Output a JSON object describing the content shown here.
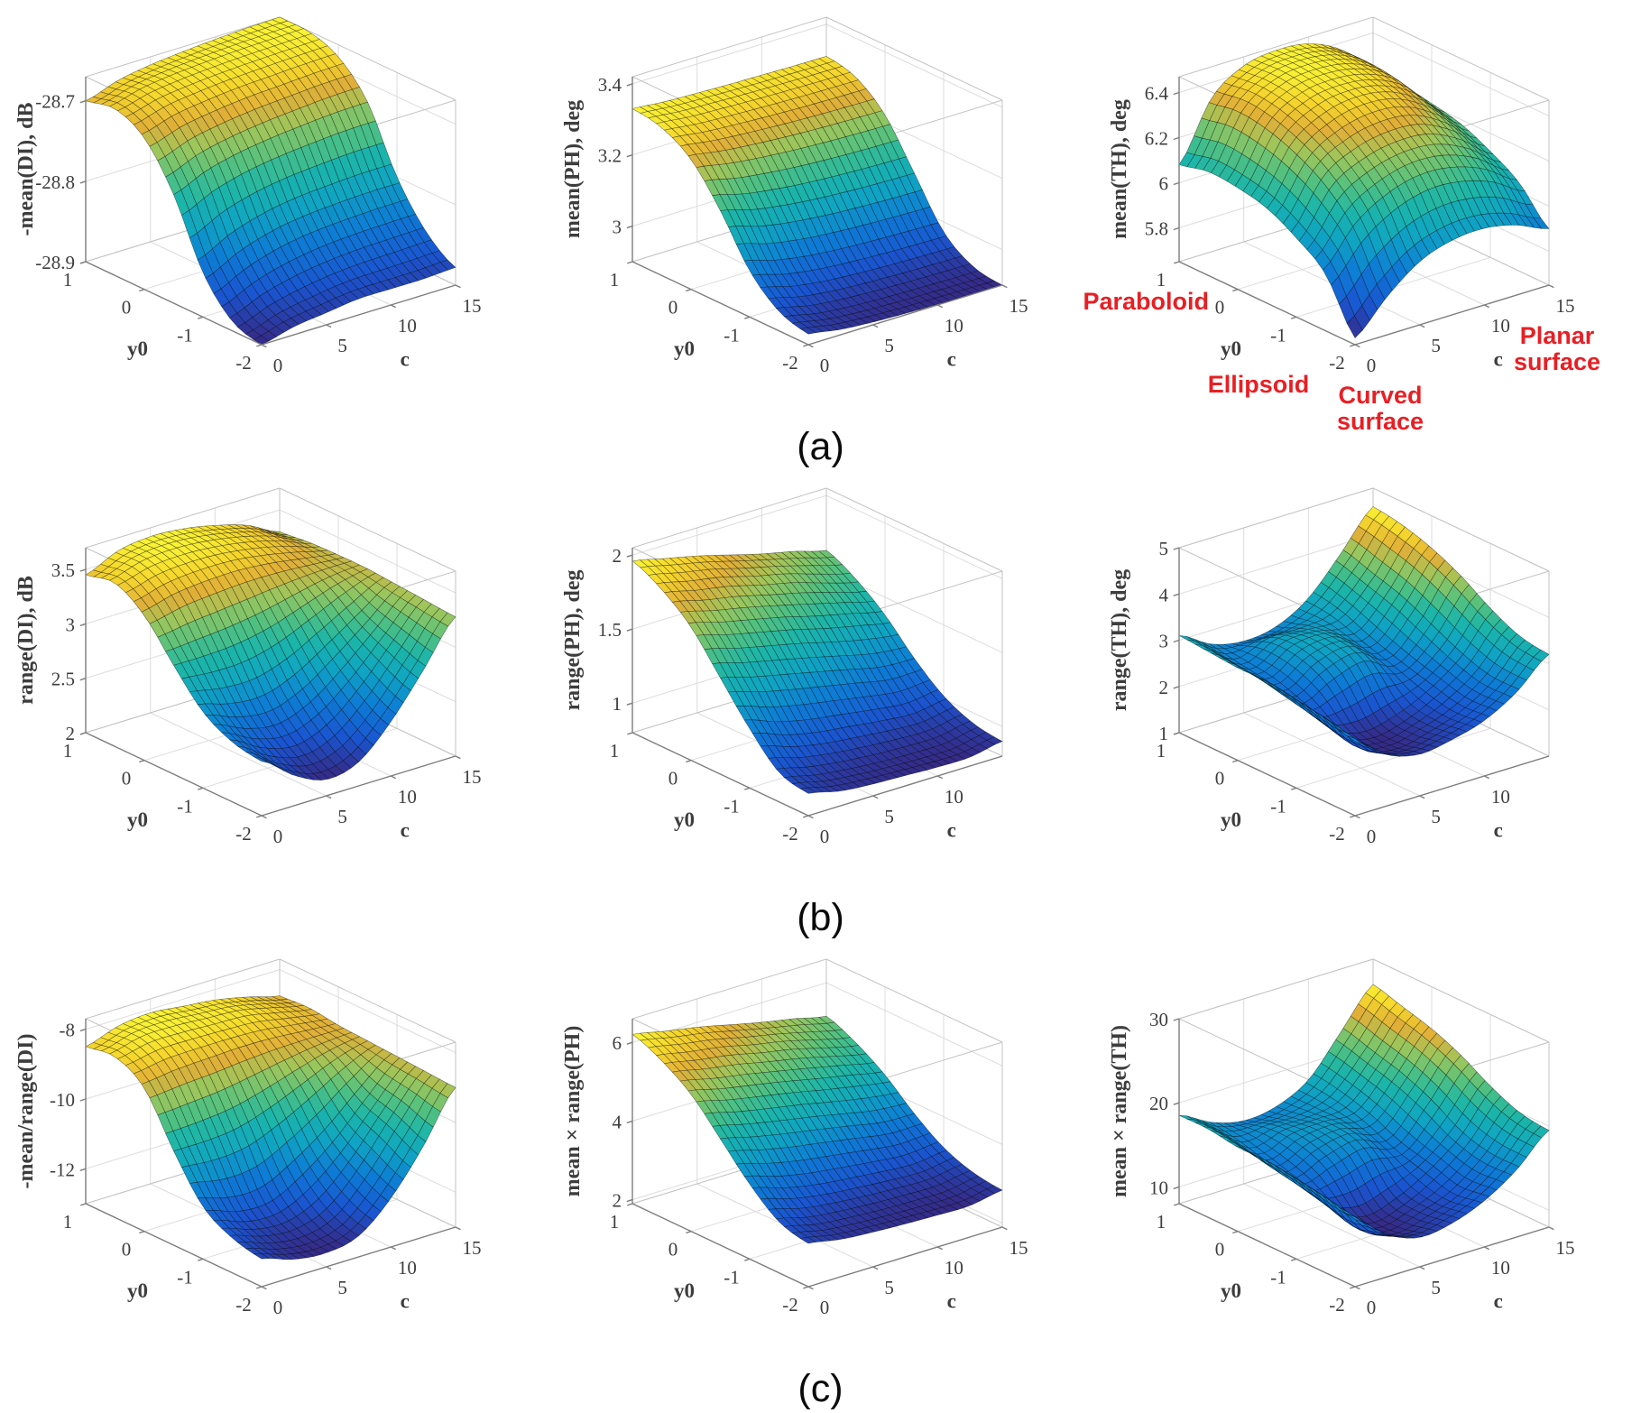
{
  "figure": {
    "captions": {
      "a": "(a)",
      "b": "(b)",
      "c": "(c)"
    },
    "annotations": {
      "paraboloid": "Paraboloid",
      "ellipsoid": "Ellipsoid",
      "curved_surface": "Curved\nsurface",
      "planar_surface": "Planar\nsurface"
    },
    "colors": {
      "annotation_red": "#e81f24",
      "axis_text": "#3d3d3d",
      "grid": "#dcdcdc",
      "box_edge": "#c3c3c3",
      "axis_line": "#7d7d7d",
      "mesh_edge": "#000000",
      "background": "#ffffff"
    },
    "colormap_parula": [
      {
        "t": 0.0,
        "c": "#352a87"
      },
      {
        "t": 0.14,
        "c": "#1a55d0"
      },
      {
        "t": 0.29,
        "c": "#0d7cd5"
      },
      {
        "t": 0.43,
        "c": "#0fa4c3"
      },
      {
        "t": 0.55,
        "c": "#1cb5a9"
      },
      {
        "t": 0.66,
        "c": "#53c17f"
      },
      {
        "t": 0.76,
        "c": "#9cc65c"
      },
      {
        "t": 0.85,
        "c": "#e0af38"
      },
      {
        "t": 0.93,
        "c": "#f5d62c"
      },
      {
        "t": 1.0,
        "c": "#f9f335"
      }
    ]
  },
  "chart_data": [
    {
      "id": "a1",
      "type": "surface",
      "zlabel": "-mean(DI), dB",
      "xlabel": "c",
      "ylabel": "y0",
      "xlim": [
        0,
        15
      ],
      "ylim": [
        -2,
        1
      ],
      "zlim": [
        -28.9,
        -28.67
      ],
      "xticks": [
        0,
        5,
        10,
        15
      ],
      "yticks": [
        -2,
        -1,
        0,
        1
      ],
      "zticks": [
        -28.9,
        -28.8,
        -28.7
      ],
      "grid_c": [
        0,
        2.5,
        5,
        7.5,
        10,
        12.5,
        15
      ],
      "grid_y0": [
        -2,
        -1.5,
        -1,
        -0.5,
        0,
        0.5,
        1
      ],
      "z": [
        [
          -28.9,
          -28.89,
          -28.885,
          -28.88,
          -28.88,
          -28.88,
          -28.878
        ],
        [
          -28.888,
          -28.872,
          -28.862,
          -28.856,
          -28.853,
          -28.852,
          -28.851
        ],
        [
          -28.845,
          -28.825,
          -28.812,
          -28.805,
          -28.802,
          -28.8,
          -28.8
        ],
        [
          -28.765,
          -28.748,
          -28.738,
          -28.732,
          -28.728,
          -28.725,
          -28.724
        ],
        [
          -28.712,
          -28.7,
          -28.694,
          -28.69,
          -28.688,
          -28.686,
          -28.685
        ],
        [
          -28.693,
          -28.683,
          -28.678,
          -28.675,
          -28.673,
          -28.672,
          -28.671
        ],
        [
          -28.7,
          -28.687,
          -28.68,
          -28.676,
          -28.673,
          -28.671,
          -28.67
        ]
      ]
    },
    {
      "id": "a2",
      "type": "surface",
      "zlabel": "mean(PH), deg",
      "xlabel": "c",
      "ylabel": "y0",
      "xlim": [
        0,
        15
      ],
      "ylim": [
        -2,
        1
      ],
      "zlim": [
        2.9,
        3.42
      ],
      "xticks": [
        0,
        5,
        10,
        15
      ],
      "yticks": [
        -2,
        -1,
        0,
        1
      ],
      "zticks": [
        3,
        3.2,
        3.4
      ],
      "grid_c": [
        0,
        2.5,
        5,
        7.5,
        10,
        12.5,
        15
      ],
      "grid_y0": [
        -2,
        -1.5,
        -1,
        -0.5,
        0,
        0.5,
        1
      ],
      "z": [
        [
          2.93,
          2.915,
          2.908,
          2.904,
          2.902,
          2.901,
          2.9
        ],
        [
          2.955,
          2.935,
          2.925,
          2.92,
          2.917,
          2.915,
          2.914
        ],
        [
          3.03,
          3.005,
          2.99,
          2.982,
          2.977,
          2.974,
          2.972
        ],
        [
          3.16,
          3.135,
          3.12,
          3.11,
          3.104,
          3.1,
          3.098
        ],
        [
          3.265,
          3.25,
          3.24,
          3.233,
          3.228,
          3.225,
          3.223
        ],
        [
          3.315,
          3.305,
          3.3,
          3.296,
          3.293,
          3.291,
          3.29
        ],
        [
          3.33,
          3.322,
          3.318,
          3.315,
          3.313,
          3.311,
          3.31
        ]
      ]
    },
    {
      "id": "a3",
      "type": "surface",
      "zlabel": "mean(TH), deg",
      "xlabel": "c",
      "ylabel": "y0",
      "xlim": [
        0,
        15
      ],
      "ylim": [
        -2,
        1
      ],
      "zlim": [
        5.65,
        6.47
      ],
      "xticks": [
        0,
        5,
        10,
        15
      ],
      "yticks": [
        -2,
        -1,
        0,
        1
      ],
      "zticks": [
        5.8,
        6,
        6.2,
        6.4
      ],
      "grid_c": [
        0,
        2.5,
        5,
        7.5,
        10,
        12.5,
        15
      ],
      "grid_y0": [
        -2,
        -1.5,
        -1,
        -0.5,
        0,
        0.5,
        1
      ],
      "z": [
        [
          5.68,
          5.82,
          5.93,
          5.98,
          5.99,
          5.96,
          5.9
        ],
        [
          5.9,
          6.06,
          6.15,
          6.19,
          6.18,
          6.13,
          6.04
        ],
        [
          6.0,
          6.2,
          6.28,
          6.31,
          6.3,
          6.23,
          6.12
        ],
        [
          6.07,
          6.28,
          6.37,
          6.4,
          6.38,
          6.3,
          6.18
        ],
        [
          6.1,
          6.33,
          6.42,
          6.44,
          6.42,
          6.35,
          6.21
        ],
        [
          6.11,
          6.35,
          6.44,
          6.46,
          6.44,
          6.37,
          6.23
        ],
        [
          6.08,
          6.33,
          6.43,
          6.455,
          6.44,
          6.37,
          6.23
        ]
      ]
    },
    {
      "id": "b1",
      "type": "surface",
      "zlabel": "range(DI), dB",
      "xlabel": "c",
      "ylabel": "y0",
      "xlim": [
        0,
        15
      ],
      "ylim": [
        -2,
        1
      ],
      "zlim": [
        2,
        3.7
      ],
      "xticks": [
        0,
        5,
        10,
        15
      ],
      "yticks": [
        -2,
        -1,
        0,
        1
      ],
      "zticks": [
        2,
        2.5,
        3,
        3.5
      ],
      "grid_c": [
        0,
        2.5,
        5,
        7.5,
        10,
        12.5,
        15
      ],
      "grid_y0": [
        -2,
        -1.5,
        -1,
        -0.5,
        0,
        0.5,
        1
      ],
      "z": [
        [
          2.5,
          2.28,
          2.15,
          2.22,
          2.5,
          2.88,
          3.28
        ],
        [
          2.55,
          2.38,
          2.3,
          2.4,
          2.65,
          2.98,
          3.3
        ],
        [
          2.7,
          2.6,
          2.57,
          2.68,
          2.88,
          3.1,
          3.32
        ],
        [
          3.0,
          3.0,
          3.02,
          3.08,
          3.18,
          3.28,
          3.34
        ],
        [
          3.33,
          3.4,
          3.43,
          3.44,
          3.42,
          3.38,
          3.34
        ],
        [
          3.5,
          3.58,
          3.6,
          3.58,
          3.53,
          3.45,
          3.33
        ],
        [
          3.45,
          3.58,
          3.62,
          3.6,
          3.54,
          3.45,
          3.3
        ]
      ]
    },
    {
      "id": "b2",
      "type": "surface",
      "zlabel": "range(PH), deg",
      "xlabel": "c",
      "ylabel": "y0",
      "xlim": [
        0,
        15
      ],
      "ylim": [
        -2,
        1
      ],
      "zlim": [
        0.8,
        2.05
      ],
      "xticks": [
        0,
        5,
        10
      ],
      "yticks": [
        -2,
        -1,
        0,
        1
      ],
      "zticks": [
        1,
        1.5,
        2
      ],
      "grid_c": [
        0,
        2.5,
        5,
        7.5,
        10,
        12.5,
        15
      ],
      "grid_y0": [
        -2,
        -1.5,
        -1,
        -0.5,
        0,
        0.5,
        1
      ],
      "z": [
        [
          0.95,
          0.9,
          0.88,
          0.87,
          0.86,
          0.86,
          0.9
        ],
        [
          1.0,
          0.95,
          0.92,
          0.9,
          0.89,
          0.89,
          0.93
        ],
        [
          1.2,
          1.12,
          1.07,
          1.04,
          1.01,
          0.99,
          1.02
        ],
        [
          1.45,
          1.39,
          1.34,
          1.29,
          1.24,
          1.19,
          1.18
        ],
        [
          1.7,
          1.64,
          1.59,
          1.54,
          1.48,
          1.43,
          1.38
        ],
        [
          1.86,
          1.81,
          1.77,
          1.71,
          1.66,
          1.59,
          1.53
        ],
        [
          1.96,
          1.91,
          1.86,
          1.8,
          1.74,
          1.69,
          1.63
        ]
      ]
    },
    {
      "id": "b3",
      "type": "surface",
      "zlabel": "range(TH), deg",
      "xlabel": "c",
      "ylabel": "y0",
      "xlim": [
        0,
        15
      ],
      "ylim": [
        -2,
        1
      ],
      "zlim": [
        1,
        5
      ],
      "xticks": [
        0,
        5,
        10
      ],
      "yticks": [
        -2,
        -1,
        0,
        1
      ],
      "zticks": [
        1,
        2,
        3,
        4,
        5
      ],
      "grid_c": [
        0,
        2.5,
        5,
        7.5,
        10,
        12.5,
        15
      ],
      "grid_y0": [
        -2,
        -1.5,
        -1,
        -0.5,
        0,
        0.5,
        1
      ],
      "z": [
        [
          2.6,
          2.1,
          1.9,
          2.0,
          2.2,
          2.6,
          3.2
        ],
        [
          2.8,
          1.95,
          1.75,
          1.9,
          2.15,
          2.6,
          3.3
        ],
        [
          2.9,
          2.1,
          1.85,
          2.0,
          2.3,
          2.8,
          3.6
        ],
        [
          3.0,
          2.3,
          2.6,
          2.8,
          2.5,
          3.1,
          4.0
        ],
        [
          3.0,
          2.5,
          2.9,
          3.0,
          2.7,
          3.4,
          4.3
        ],
        [
          3.05,
          2.6,
          2.9,
          2.9,
          2.95,
          3.6,
          4.5
        ],
        [
          3.1,
          2.7,
          2.55,
          2.65,
          3.05,
          3.8,
          4.6
        ]
      ]
    },
    {
      "id": "c1",
      "type": "surface",
      "zlabel": "-mean/range(DI)",
      "xlabel": "c",
      "ylabel": "y0",
      "xlim": [
        0,
        15
      ],
      "ylim": [
        -2,
        1
      ],
      "zlim": [
        -13,
        -7.7
      ],
      "xticks": [
        0,
        5,
        10,
        15
      ],
      "yticks": [
        -2,
        -1,
        0,
        1
      ],
      "zticks": [
        -12,
        -10,
        -8
      ],
      "grid_c": [
        0,
        2.5,
        5,
        7.5,
        10,
        12.5,
        15
      ],
      "grid_y0": [
        -2,
        -1.5,
        -1,
        -0.5,
        0,
        0.5,
        1
      ],
      "z": [
        [
          -12.2,
          -12.5,
          -12.6,
          -12.4,
          -11.6,
          -10.4,
          -9.0
        ],
        [
          -12.0,
          -12.3,
          -12.4,
          -12.1,
          -11.2,
          -10.0,
          -8.95
        ],
        [
          -11.5,
          -11.8,
          -11.8,
          -11.3,
          -10.6,
          -9.7,
          -8.9
        ],
        [
          -10.3,
          -10.3,
          -10.2,
          -9.9,
          -9.5,
          -9.1,
          -8.85
        ],
        [
          -8.9,
          -8.8,
          -8.75,
          -8.7,
          -8.7,
          -8.75,
          -8.8
        ],
        [
          -8.4,
          -8.2,
          -8.2,
          -8.25,
          -8.3,
          -8.5,
          -8.7
        ],
        [
          -8.5,
          -8.2,
          -8.1,
          -8.2,
          -8.3,
          -8.5,
          -8.75
        ]
      ]
    },
    {
      "id": "c2",
      "type": "surface",
      "zlabel": "mean × range(PH)",
      "xlabel": "c",
      "ylabel": "y0",
      "xlim": [
        0,
        15
      ],
      "ylim": [
        -2,
        1
      ],
      "zlim": [
        1.9,
        6.6
      ],
      "xticks": [
        0,
        5,
        10,
        15
      ],
      "yticks": [
        -2,
        -1,
        0,
        1
      ],
      "zticks": [
        2,
        4,
        6
      ],
      "grid_c": [
        0,
        2.5,
        5,
        7.5,
        10,
        12.5,
        15
      ],
      "grid_y0": [
        -2,
        -1.5,
        -1,
        -0.5,
        0,
        0.5,
        1
      ],
      "z": [
        [
          3.0,
          2.85,
          2.78,
          2.74,
          2.71,
          2.7,
          2.84
        ],
        [
          3.2,
          3.0,
          2.91,
          2.85,
          2.82,
          2.81,
          2.94
        ],
        [
          3.8,
          3.55,
          3.38,
          3.28,
          3.19,
          3.13,
          3.22
        ],
        [
          4.6,
          4.4,
          4.23,
          4.08,
          3.92,
          3.76,
          3.73
        ],
        [
          5.38,
          5.18,
          5.02,
          4.86,
          4.68,
          4.52,
          4.36
        ],
        [
          5.88,
          5.72,
          5.59,
          5.4,
          5.24,
          5.02,
          4.83
        ],
        [
          6.2,
          6.03,
          5.88,
          5.69,
          5.5,
          5.34,
          5.15
        ]
      ]
    },
    {
      "id": "c3",
      "type": "surface",
      "zlabel": "mean × range(TH)",
      "xlabel": "c",
      "ylabel": "y0",
      "xlim": [
        0,
        15
      ],
      "ylim": [
        -2,
        1
      ],
      "zlim": [
        8,
        30
      ],
      "xticks": [
        0,
        5,
        10,
        15
      ],
      "yticks": [
        -2,
        -1,
        0,
        1
      ],
      "zticks": [
        10,
        20,
        30
      ],
      "grid_c": [
        0,
        2.5,
        5,
        7.5,
        10,
        12.5,
        15
      ],
      "grid_y0": [
        -2,
        -1.5,
        -1,
        -0.5,
        0,
        0.5,
        1
      ],
      "z": [
        [
          16.0,
          13.0,
          11.5,
          12.0,
          13.5,
          16.0,
          19.5
        ],
        [
          17.0,
          12.0,
          10.5,
          11.5,
          13.0,
          16.0,
          20.0
        ],
        [
          17.5,
          13.0,
          11.0,
          12.0,
          14.0,
          17.0,
          21.5
        ],
        [
          18.0,
          14.0,
          15.0,
          16.0,
          15.0,
          19.0,
          23.5
        ],
        [
          18.0,
          15.0,
          16.5,
          17.0,
          16.5,
          20.5,
          25.0
        ],
        [
          18.5,
          16.0,
          16.5,
          16.5,
          17.5,
          21.5,
          26.0
        ],
        [
          18.5,
          16.5,
          15.5,
          16.0,
          18.0,
          22.5,
          27.0
        ]
      ]
    }
  ]
}
